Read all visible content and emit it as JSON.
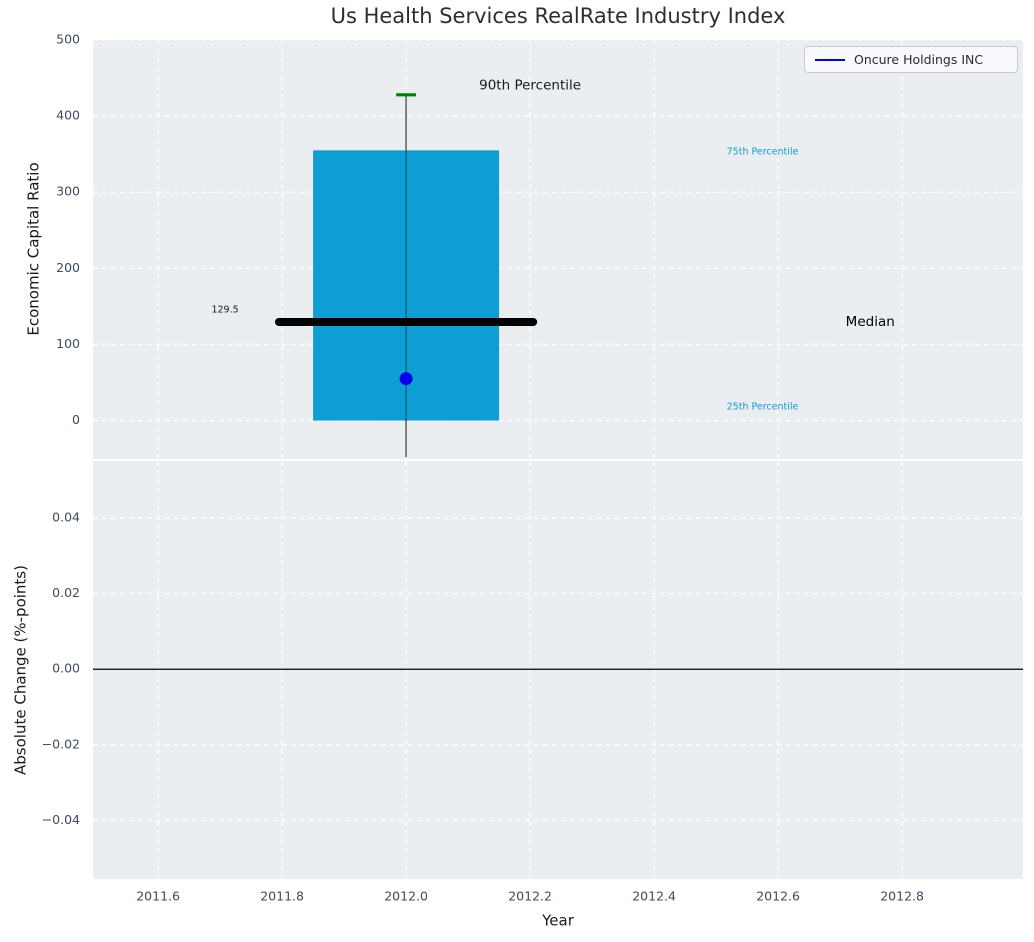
{
  "figure": {
    "title": "Us Health Services RealRate Industry Index"
  },
  "legend": {
    "label": "Oncure Holdings INC",
    "line_color": "#0000ee",
    "position": "upper right"
  },
  "colors": {
    "axes_bg": "#eaeef0",
    "grid": "#ffffff",
    "tick": "#3e4c60",
    "text": "#1a1a1a",
    "box": "#0d9ed3",
    "median": "#000000",
    "cap": "#008000",
    "dot": "#0000ee",
    "whisker": "#666666",
    "annotation_cyan": "#0d9ed3"
  },
  "chart_data": [
    {
      "type": "box",
      "title": "Us Health Services RealRate Industry Index",
      "ylabel": "Economic Capital Ratio",
      "ylim": [
        -50.5,
        500
      ],
      "yticks": [
        0,
        100,
        200,
        300,
        400,
        500
      ],
      "ytick_labels": [
        "0",
        "100",
        "200",
        "300",
        "400",
        "500"
      ],
      "xlim": [
        2011.495,
        2012.995
      ],
      "xticks": [
        2011.6,
        2011.8,
        2012.0,
        2012.2,
        2012.4,
        2012.6,
        2012.8
      ],
      "grid": true,
      "legend_entries": [
        "Oncure Holdings INC"
      ],
      "box": {
        "series_name": "Oncure Holdings INC",
        "center_x": 2012.0,
        "width": 0.3,
        "p25": 0,
        "median": 129.5,
        "p75": 355,
        "p90": 428,
        "whisker_low": -48,
        "company_value": 55,
        "median_span": [
          2011.795,
          2012.205
        ],
        "median_label": "129.5",
        "cap_half_width": 0.016
      },
      "annotations": [
        {
          "text": "90th Percentile",
          "x": 2012.2,
          "y": 440,
          "color": "#1a1a1a",
          "size": 13.5,
          "anchor": "middle"
        },
        {
          "text": "75th Percentile",
          "x": 2012.517,
          "y": 353,
          "color": "#0d9ed3",
          "size": 9.5,
          "anchor": "start"
        },
        {
          "text": "Median",
          "x": 2012.709,
          "y": 129.5,
          "color": "#000000",
          "size": 13.5,
          "anchor": "start"
        },
        {
          "text": "25th Percentile",
          "x": 2012.517,
          "y": 18,
          "color": "#0d9ed3",
          "size": 9.5,
          "anchor": "start"
        },
        {
          "text": "129.5",
          "x": 2011.708,
          "y": 145,
          "color": "#1a1a1a",
          "size": 9.5,
          "anchor": "middle"
        }
      ]
    },
    {
      "type": "line",
      "ylabel": "Absolute Change (%-points)",
      "xlabel": "Year",
      "ylim": [
        -0.0555,
        0.0551
      ],
      "yticks": [
        0.04,
        0.02,
        0,
        -0.02,
        -0.04
      ],
      "ytick_labels": [
        "0.04",
        "0.02",
        "0.00",
        "−0.02",
        "−0.04"
      ],
      "xticks": [
        2011.6,
        2011.8,
        2012.0,
        2012.2,
        2012.4,
        2012.6,
        2012.8
      ],
      "xtick_labels": [
        "2011.6",
        "2011.8",
        "2012.0",
        "2012.2",
        "2012.4",
        "2012.6",
        "2012.8"
      ],
      "zero_line": 0.0,
      "series": []
    }
  ]
}
